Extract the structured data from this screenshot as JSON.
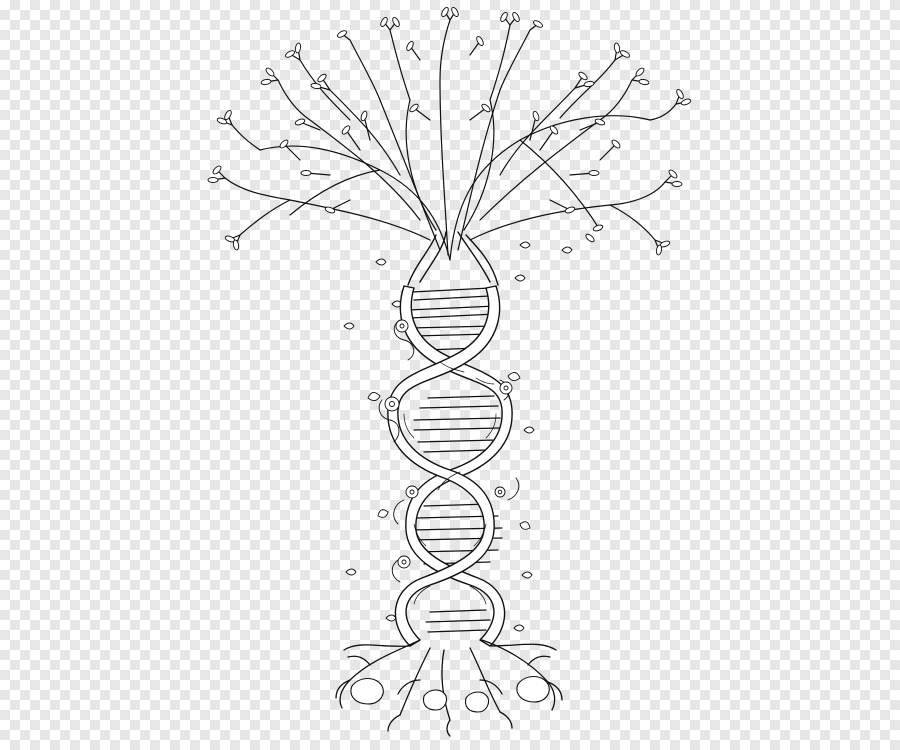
{
  "image": {
    "subject": "tree-of-life-dna-helix",
    "style": "ink-line-drawing",
    "background": "transparency-checkerboard"
  },
  "colors": {
    "ink": "#111111",
    "paper": "#ffffff",
    "checker_light": "#ffffff",
    "checker_dark": "#e6e6e6"
  }
}
